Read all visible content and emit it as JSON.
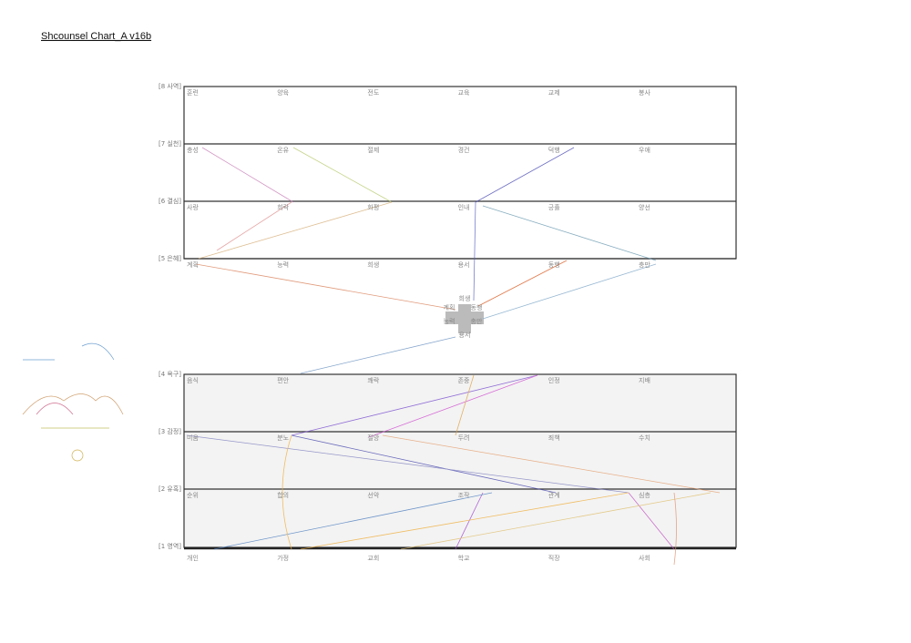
{
  "title": "Shcounsel Chart_A v16b",
  "levels": [
    {
      "label": "[8 사역]",
      "items": [
        "훈련",
        "양육",
        "전도",
        "교육",
        "교제",
        "봉사"
      ]
    },
    {
      "label": "[7 실천]",
      "items": [
        "충성",
        "온유",
        "절제",
        "경건",
        "덕행",
        "우애"
      ]
    },
    {
      "label": "[6 결심]",
      "items": [
        "사랑",
        "희락",
        "화평",
        "인내",
        "긍휼",
        "양선"
      ]
    },
    {
      "label": "[5 은혜]",
      "items": [
        "계획",
        "능력",
        "희생",
        "용서",
        "동행",
        "충만"
      ]
    },
    {
      "label": "[4 욕구]",
      "items": [
        "음식",
        "편안",
        "쾌락",
        "존중",
        "인정",
        "지배"
      ]
    },
    {
      "label": "[3 감정]",
      "items": [
        "미움",
        "분노",
        "절망",
        "두려",
        "죄책",
        "수치"
      ]
    },
    {
      "label": "[2 유혹]",
      "items": [
        "순위",
        "합의",
        "선악",
        "조작",
        "관계",
        "심층"
      ]
    },
    {
      "label": "[1 영역]",
      "items": [
        "개인",
        "가정",
        "교회",
        "학교",
        "직장",
        "사회"
      ]
    }
  ],
  "center": {
    "items": [
      "희생",
      "계획",
      "동행",
      "능력",
      "충만",
      "용서"
    ]
  }
}
